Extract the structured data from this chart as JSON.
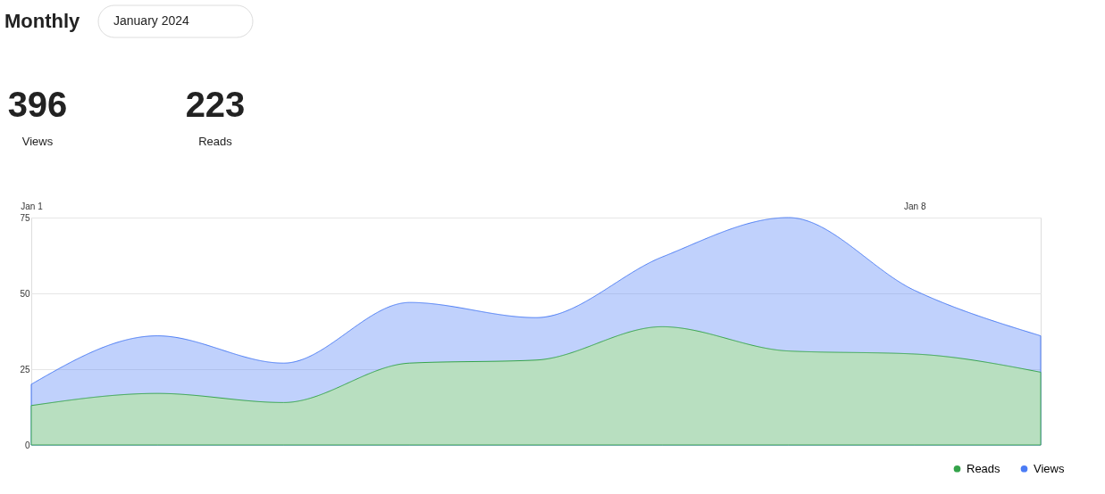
{
  "chart_data": {
    "type": "area",
    "title": "Monthly",
    "subtitle": "January 2024",
    "annotations": [
      "396",
      "Views",
      "223",
      "Reads"
    ],
    "x": [
      "2024-01-01",
      "2024-01-02",
      "2024-01-03",
      "2024-01-04",
      "2024-01-05",
      "2024-01-06",
      "2024-01-07",
      "2024-01-08",
      "2024-01-09"
    ],
    "series": [
      {
        "name": "Reads",
        "color": "#34a34a",
        "values": [
          13,
          17,
          14,
          27,
          28,
          39,
          31,
          30,
          24
        ]
      },
      {
        "name": "Views",
        "color": "#4b7cf5",
        "values": [
          20,
          36,
          27,
          47,
          42,
          62,
          75,
          51,
          36
        ]
      }
    ],
    "xlim": [
      "2024-01-01",
      "2024-01-09"
    ],
    "xticks": [
      {
        "value": "2024-01-01",
        "label": "Jan 1"
      },
      {
        "value": "2024-01-08",
        "label": "Jan 8"
      }
    ],
    "ylim": [
      0,
      75
    ],
    "yticks": [
      0,
      25,
      50,
      75
    ],
    "grid": "y",
    "legend": "bottom right"
  }
}
